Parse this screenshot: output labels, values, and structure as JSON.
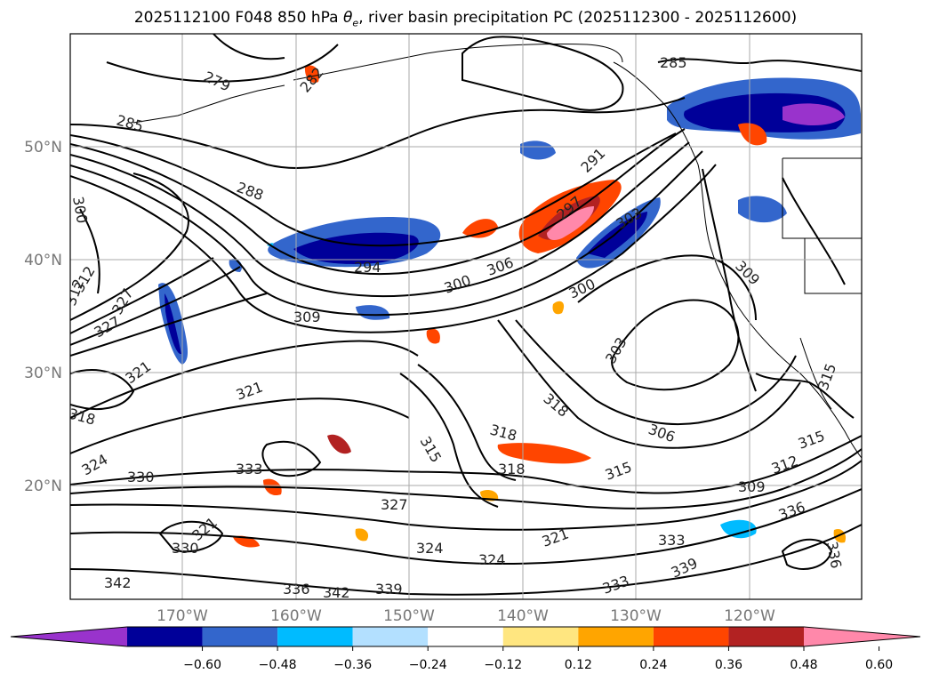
{
  "title": {
    "prefix": "2025112100 F048 850 hPa ",
    "theta": "θ",
    "theta_sub": "e",
    "suffix": ", river basin precipitation PC (2025112300 - 2025112600)"
  },
  "map": {
    "lon_ticks": [
      "170°W",
      "160°W",
      "150°W",
      "140°W",
      "130°W",
      "120°W"
    ],
    "lat_ticks": [
      "50°N",
      "40°N",
      "30°N",
      "20°N"
    ],
    "gridlines": true
  },
  "colorbar": {
    "ticks": [
      "−0.60",
      "−0.48",
      "−0.36",
      "−0.24",
      "−0.12",
      "0.12",
      "0.24",
      "0.36",
      "0.48",
      "0.60"
    ],
    "colors": [
      "#9933cc",
      "#000099",
      "#3366cc",
      "#00bbff",
      "#b3e0ff",
      "#ffffff",
      "#ffe680",
      "#ffa500",
      "#ff4500",
      "#b22222",
      "#ff88aa"
    ],
    "extend": "both"
  },
  "contour_labels": [
    "279",
    "282",
    "285",
    "285",
    "288",
    "291",
    "294",
    "297",
    "300",
    "300",
    "300",
    "303",
    "303",
    "306",
    "306",
    "309",
    "309",
    "309",
    "312",
    "312",
    "315",
    "315",
    "315",
    "318",
    "318",
    "318",
    "318",
    "321",
    "321",
    "321",
    "321",
    "324",
    "324",
    "324",
    "327",
    "327",
    "327",
    "330",
    "330",
    "333",
    "333",
    "333",
    "336",
    "336",
    "336",
    "339",
    "339",
    "342",
    "342",
    "312",
    "315"
  ]
}
